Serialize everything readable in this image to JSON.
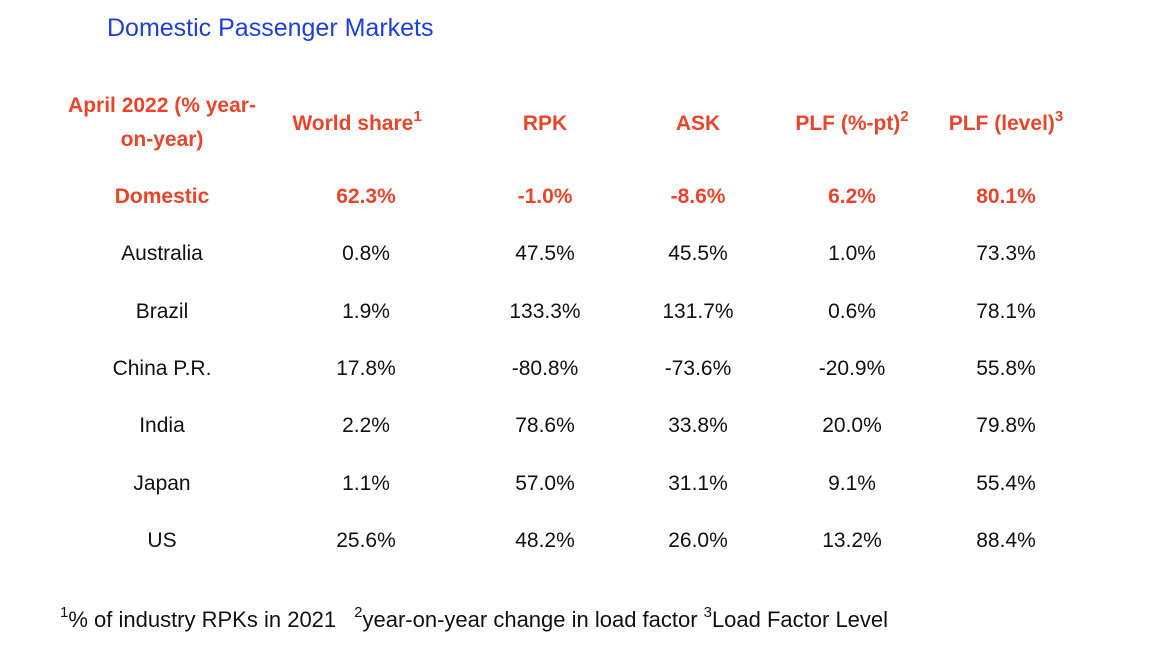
{
  "title": "Domestic Passenger Markets",
  "headers": {
    "market": "April 2022 (% year-on-year)",
    "world_share": "World share",
    "world_share_sup": "1",
    "rpk": "RPK",
    "ask": "ASK",
    "plf_pt": "PLF (%-pt)",
    "plf_pt_sup": "2",
    "plf_level": "PLF (level)",
    "plf_level_sup": "3"
  },
  "rows": [
    {
      "market": "Domestic",
      "world_share": "62.3%",
      "rpk": "-1.0%",
      "ask": "-8.6%",
      "plf_pt": "6.2%",
      "plf_level": "80.1%"
    },
    {
      "market": "Australia",
      "world_share": "0.8%",
      "rpk": "47.5%",
      "ask": "45.5%",
      "plf_pt": "1.0%",
      "plf_level": "73.3%"
    },
    {
      "market": "Brazil",
      "world_share": "1.9%",
      "rpk": "133.3%",
      "ask": "131.7%",
      "plf_pt": "0.6%",
      "plf_level": "78.1%"
    },
    {
      "market": "China P.R.",
      "world_share": "17.8%",
      "rpk": "-80.8%",
      "ask": "-73.6%",
      "plf_pt": "-20.9%",
      "plf_level": "55.8%"
    },
    {
      "market": "India",
      "world_share": "2.2%",
      "rpk": "78.6%",
      "ask": "33.8%",
      "plf_pt": "20.0%",
      "plf_level": "79.8%"
    },
    {
      "market": "Japan",
      "world_share": "1.1%",
      "rpk": "57.0%",
      "ask": "31.1%",
      "plf_pt": "9.1%",
      "plf_level": "55.4%"
    },
    {
      "market": "US",
      "world_share": "25.6%",
      "rpk": "48.2%",
      "ask": "26.0%",
      "plf_pt": "13.2%",
      "plf_level": "88.4%"
    }
  ],
  "footnotes": {
    "n1_sup": "1",
    "n1_text": "% of industry RPKs in 2021",
    "n2_sup": "2",
    "n2_text": "year-on-year change in load factor",
    "n3_sup": "3",
    "n3_text": "Load Factor Level"
  },
  "colors": {
    "title": "#1f3fd6",
    "accent": "#e8452c",
    "text": "#111111"
  }
}
